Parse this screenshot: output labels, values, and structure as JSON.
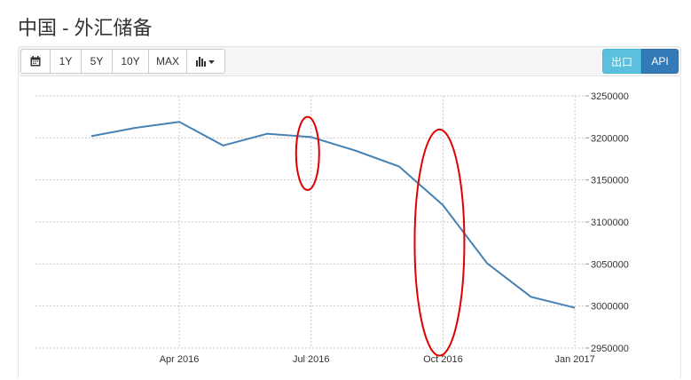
{
  "page_title": "中国 - 外汇储备",
  "toolbar": {
    "calendar_icon": "calendar-icon",
    "ranges": [
      "1Y",
      "5Y",
      "10Y",
      "MAX"
    ],
    "chart_type_icon": "bar-chart-icon",
    "export_label": "出口",
    "api_label": "API",
    "export_color": "#5bc0de",
    "api_color": "#337ab7"
  },
  "chart_data": {
    "type": "line",
    "title": "",
    "xlabel": "",
    "ylabel": "",
    "x": [
      "2016-02",
      "2016-03",
      "2016-04",
      "2016-05",
      "2016-06",
      "2016-07",
      "2016-08",
      "2016-09",
      "2016-10",
      "2016-11",
      "2016-12",
      "2017-01"
    ],
    "series": [
      {
        "values": [
          3202000,
          3212000,
          3219000,
          3191000,
          3205000,
          3201000,
          3185000,
          3166000,
          3120000,
          3051000,
          3011000,
          2998000
        ]
      }
    ],
    "x_ticks": [
      "Apr 2016",
      "Jul 2016",
      "Oct 2016",
      "Jan 2017"
    ],
    "y_ticks": [
      "3250000",
      "3200000",
      "3150000",
      "3100000",
      "3050000",
      "3000000",
      "2950000"
    ],
    "ylim": [
      2950000,
      3250000
    ],
    "grid": true,
    "annotations": [
      {
        "shape": "ellipse",
        "color": "#e00000",
        "x": "2016-07",
        "y_range": [
          3138000,
          3225000
        ]
      },
      {
        "shape": "ellipse",
        "color": "#e00000",
        "x": "2016-10",
        "y_range": [
          2941000,
          3210000
        ]
      }
    ],
    "line_color": "#4682b4"
  }
}
